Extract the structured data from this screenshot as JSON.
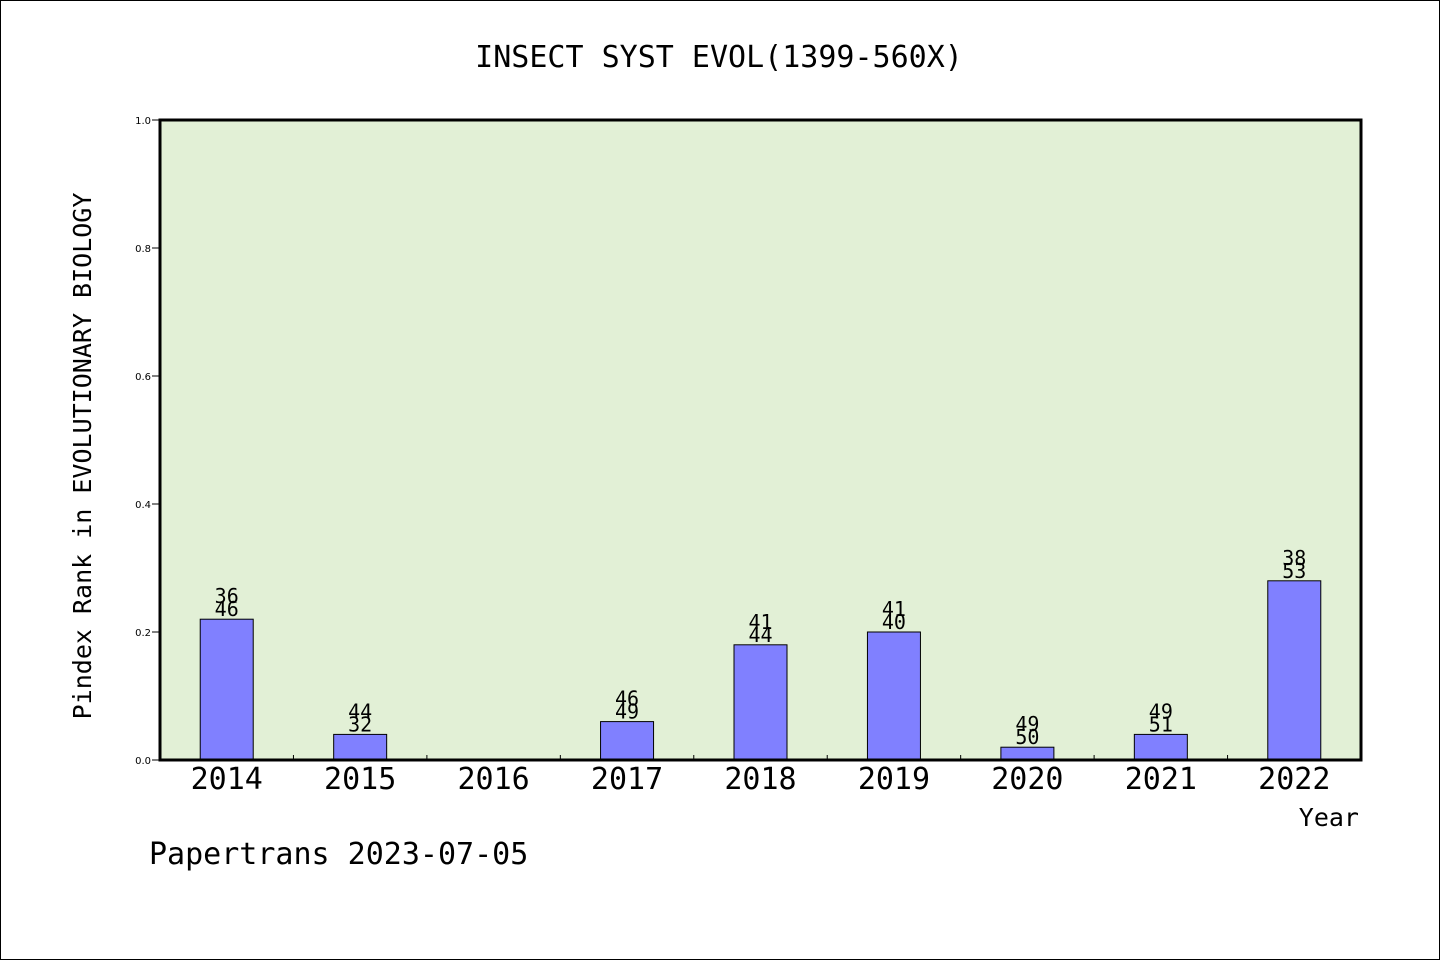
{
  "chart_data": {
    "type": "bar",
    "title": "INSECT SYST EVOL(1399-560X)",
    "xlabel": "Year",
    "ylabel": "Pindex Rank in EVOLUTIONARY BIOLOGY",
    "categories": [
      "2014",
      "2015",
      "2016",
      "2017",
      "2018",
      "2019",
      "2020",
      "2021",
      "2022"
    ],
    "values": [
      0.22,
      0.04,
      0,
      0.06,
      0.18,
      0.2,
      0.02,
      0.04,
      0.28
    ],
    "label_top": [
      "36",
      "44",
      "",
      "46",
      "41",
      "41",
      "49",
      "49",
      "38"
    ],
    "label_bottom": [
      "46",
      "32",
      "",
      "49",
      "44",
      "40",
      "50",
      "51",
      "53"
    ],
    "ylim": [
      0,
      1.0
    ],
    "yticks": [
      "0.0",
      "0.2",
      "0.4",
      "0.6",
      "0.8",
      "1.0"
    ],
    "grid": false,
    "colors": {
      "plot_bg": "#e2f0d6",
      "bar_fill": "#8080ff",
      "bar_stroke": "#000000"
    }
  },
  "footer": {
    "credit": "Papertrans 2023-07-05"
  }
}
